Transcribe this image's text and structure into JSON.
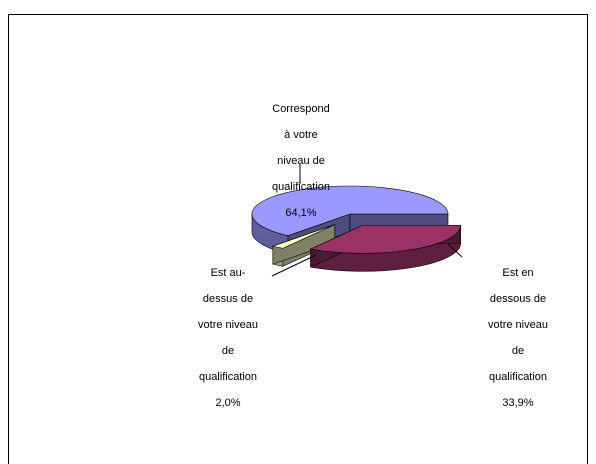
{
  "chart_data": {
    "type": "pie",
    "three_d": true,
    "slices": [
      {
        "label": [
          "Correspond",
          "à votre",
          "niveau de",
          "qualification"
        ],
        "value_label": "64,1%",
        "value": 64.1,
        "color": "#9999ff",
        "exploded": false
      },
      {
        "label": [
          "Est en",
          "dessous de",
          "votre niveau",
          "de",
          "qualification"
        ],
        "value_label": "33,9%",
        "value": 33.9,
        "color": "#993366",
        "exploded": true
      },
      {
        "label": [
          "Est au-",
          "dessus de",
          "votre niveau",
          "de",
          "qualification"
        ],
        "value_label": "2,0%",
        "value": 2.0,
        "color": "#ffffcc",
        "exploded": true
      }
    ],
    "legend": "none",
    "title": ""
  }
}
